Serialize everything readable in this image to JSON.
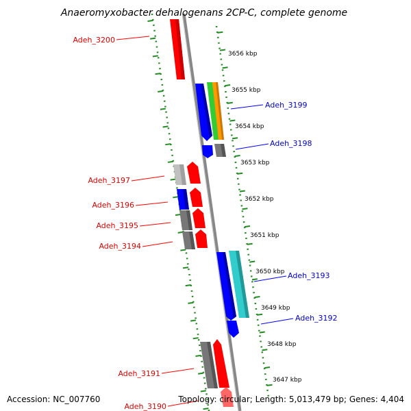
{
  "title": "Anaeromyxobacter dehalogenans 2CP-C, complete genome",
  "footer": {
    "accession": "Accession: NC_007760",
    "summary": "Topology: circular; Length: 5,013,479 bp; Genes: 4,404"
  },
  "colors": {
    "forward": "#ff0000",
    "reverse": "#0000ff",
    "other_gene": "#777777",
    "light_gene": "#c0c0c0",
    "rna_green": "#33cc33",
    "rna_orange": "#ff9900",
    "cyan": "#33cccc",
    "tick_green": "#228B22",
    "backbone": "#888888"
  },
  "scale_labels": [
    "3656 kbp",
    "3655 kbp",
    "3654 kbp",
    "3653 kbp",
    "3652 kbp",
    "3651 kbp",
    "3650 kbp",
    "3649 kbp",
    "3648 kbp",
    "3647 kbp"
  ],
  "genes_left": [
    {
      "name": "Adeh_3200"
    },
    {
      "name": "Adeh_3197"
    },
    {
      "name": "Adeh_3196"
    },
    {
      "name": "Adeh_3195"
    },
    {
      "name": "Adeh_3194"
    },
    {
      "name": "Adeh_3191"
    },
    {
      "name": "Adeh_3190"
    }
  ],
  "genes_right": [
    {
      "name": "Adeh_3199"
    },
    {
      "name": "Adeh_3198"
    },
    {
      "name": "Adeh_3193"
    },
    {
      "name": "Adeh_3192"
    }
  ]
}
